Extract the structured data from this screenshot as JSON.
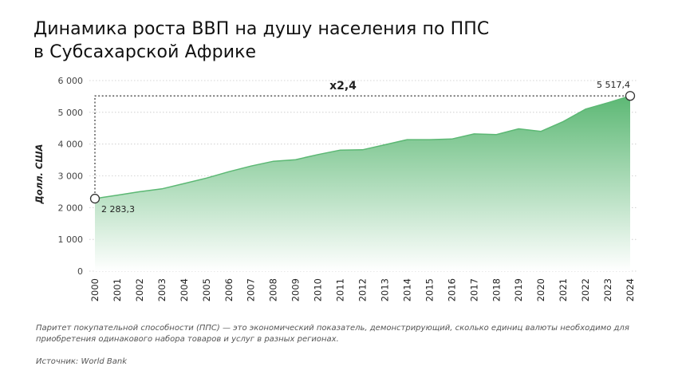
{
  "title_lines": [
    "Динамика роста ВВП на душу населения по ППС",
    "в Субсахарской Африке"
  ],
  "note": "Паритет покупательной способности (ППС) — это экономический показатель, демонстрирующий, сколько единиц валюты необходимо для приобретения одинакового набора товаров и услуг в разных регионах.",
  "source": "Источник: World Bank",
  "colors": {
    "area_top": "#5cb874",
    "area_bottom": "#ffffff",
    "line": "#5cb874"
  },
  "chart_data": {
    "type": "area",
    "ylabel": "Долл. США",
    "ylim": [
      0,
      6000
    ],
    "yticks": [
      0,
      1000,
      2000,
      3000,
      4000,
      5000,
      6000
    ],
    "ytick_labels": [
      "0",
      "1 000",
      "2 000",
      "3 000",
      "4 000",
      "5 000",
      "6 000"
    ],
    "grid": "horizontal dotted",
    "x": [
      "2000",
      "2001",
      "2002",
      "2003",
      "2004",
      "2005",
      "2006",
      "2007",
      "2008",
      "2009",
      "2010",
      "2011",
      "2012",
      "2013",
      "2014",
      "2015",
      "2016",
      "2017",
      "2018",
      "2019",
      "2020",
      "2021",
      "2022",
      "2023",
      "2024"
    ],
    "values": [
      2283.3,
      2390,
      2500,
      2590,
      2760,
      2930,
      3130,
      3310,
      3460,
      3510,
      3670,
      3810,
      3820,
      3980,
      4140,
      4140,
      4160,
      4320,
      4300,
      4480,
      4400,
      4710,
      5100,
      5300,
      5517.4
    ],
    "annotations": {
      "start_label": "2 283,3",
      "end_label": "5 517,4",
      "multiplier": "x2,4"
    }
  }
}
